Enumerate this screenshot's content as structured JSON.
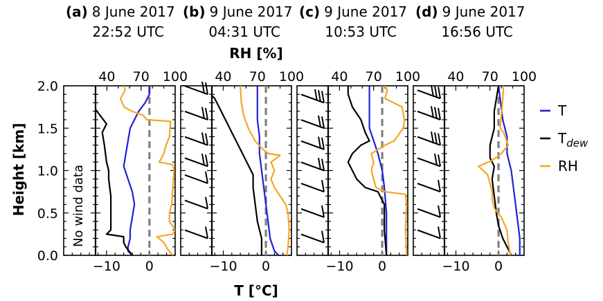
{
  "chart_data": {
    "type": "line",
    "shared": {
      "ylabel": "Height [km]",
      "xlabel_bottom": "T [°C]",
      "xlabel_top": "RH [%]",
      "ylim": [
        0.0,
        2.0
      ],
      "xlim_T": [
        -20,
        6
      ],
      "xlim_RH": [
        30,
        100
      ],
      "y_ticks": [
        "0.0",
        "0.5",
        "1.0",
        "1.5",
        "2.0"
      ],
      "T_ticks": [
        "−10",
        "0"
      ],
      "RH_ticks": [
        "40",
        "70",
        "100"
      ],
      "zero_line": "dashed gray at T = 0"
    },
    "legend": {
      "position": "right",
      "entries": [
        {
          "label": "T",
          "color": "#1f1fd6"
        },
        {
          "label": "T",
          "sub": "dew",
          "color": "#000000"
        },
        {
          "label": "RH",
          "color": "#f5a623"
        }
      ]
    },
    "panels": [
      {
        "tag": "(a)",
        "date": "8 June 2017",
        "time": "22:52 UTC",
        "wind_note": "No wind data",
        "barbs": [],
        "T": [
          [
            -4,
            0.0
          ],
          [
            -5,
            0.05
          ],
          [
            -5,
            0.1
          ],
          [
            -4.5,
            0.2
          ],
          [
            -4.5,
            0.3
          ],
          [
            -4,
            0.45
          ],
          [
            -3.5,
            0.6
          ],
          [
            -4,
            0.75
          ],
          [
            -5,
            0.9
          ],
          [
            -6,
            1.05
          ],
          [
            -5.5,
            1.2
          ],
          [
            -5,
            1.35
          ],
          [
            -4.5,
            1.5
          ],
          [
            -3.5,
            1.6
          ],
          [
            -2.5,
            1.7
          ],
          [
            -1,
            1.8
          ],
          [
            0,
            1.9
          ],
          [
            0,
            2.0
          ]
        ],
        "Tdew": [
          [
            -4,
            0.0
          ],
          [
            -5.5,
            0.1
          ],
          [
            -6,
            0.15
          ],
          [
            -6,
            0.22
          ],
          [
            -10,
            0.25
          ],
          [
            -9,
            0.3
          ],
          [
            -9,
            0.5
          ],
          [
            -9,
            0.7
          ],
          [
            -9.5,
            0.9
          ],
          [
            -9.5,
            1.0
          ],
          [
            -10,
            1.1
          ],
          [
            -10.5,
            1.3
          ],
          [
            -11,
            1.45
          ],
          [
            -10,
            1.55
          ],
          [
            -13,
            1.75
          ],
          [
            -15,
            1.9
          ],
          [
            -14,
            2.0
          ]
        ],
        "RH": [
          [
            98,
            0.0
          ],
          [
            96,
            0.03
          ],
          [
            93,
            0.08
          ],
          [
            90,
            0.15
          ],
          [
            84,
            0.22
          ],
          [
            98,
            0.25
          ],
          [
            100,
            0.3
          ],
          [
            95,
            0.4
          ],
          [
            95,
            0.5
          ],
          [
            97,
            0.6
          ],
          [
            98,
            0.8
          ],
          [
            99,
            1.0
          ],
          [
            98,
            1.07
          ],
          [
            86,
            1.1
          ],
          [
            90,
            1.2
          ],
          [
            92,
            1.3
          ],
          [
            95,
            1.4
          ],
          [
            96,
            1.58
          ],
          [
            75,
            1.6
          ],
          [
            72,
            1.65
          ],
          [
            62,
            1.7
          ],
          [
            55,
            1.75
          ],
          [
            52,
            1.85
          ],
          [
            56,
            1.95
          ],
          [
            55,
            2.0
          ]
        ]
      },
      {
        "tag": "(b)",
        "date": "9 June 2017",
        "time": "04:31 UTC",
        "wind_note": "",
        "barbs": [
          {
            "h": 0.2,
            "n": 1
          },
          {
            "h": 0.55,
            "n": 1
          },
          {
            "h": 0.85,
            "n": 1
          },
          {
            "h": 1.05,
            "n": 2
          },
          {
            "h": 1.3,
            "n": 2
          },
          {
            "h": 1.6,
            "n": 2
          },
          {
            "h": 1.9,
            "n": 2
          }
        ],
        "T": [
          [
            3,
            0.0
          ],
          [
            2,
            0.05
          ],
          [
            1,
            0.2
          ],
          [
            0.5,
            0.4
          ],
          [
            0,
            0.6
          ],
          [
            -0.5,
            0.8
          ],
          [
            -1,
            1.0
          ],
          [
            -1.5,
            1.2
          ],
          [
            -1.5,
            1.4
          ],
          [
            -2,
            1.6
          ],
          [
            -2,
            1.8
          ],
          [
            -2,
            2.0
          ]
        ],
        "Tdew": [
          [
            -1,
            0.0
          ],
          [
            -1,
            0.2
          ],
          [
            -2,
            0.4
          ],
          [
            -2.5,
            0.6
          ],
          [
            -3,
            0.8
          ],
          [
            -3,
            0.95
          ],
          [
            -4,
            1.05
          ],
          [
            -5,
            1.15
          ],
          [
            -6,
            1.25
          ],
          [
            -7,
            1.35
          ],
          [
            -8,
            1.45
          ],
          [
            -9,
            1.55
          ],
          [
            -10,
            1.65
          ],
          [
            -11,
            1.75
          ],
          [
            -12,
            1.85
          ],
          [
            -14,
            1.95
          ],
          [
            -14,
            2.0
          ]
        ],
        "RH": [
          [
            96,
            0.0
          ],
          [
            97,
            0.1
          ],
          [
            98,
            0.3
          ],
          [
            97,
            0.5
          ],
          [
            95,
            0.6
          ],
          [
            90,
            0.7
          ],
          [
            85,
            0.8
          ],
          [
            82,
            0.9
          ],
          [
            85,
            1.0
          ],
          [
            82,
            1.1
          ],
          [
            90,
            1.18
          ],
          [
            80,
            1.2
          ],
          [
            75,
            1.25
          ],
          [
            68,
            1.35
          ],
          [
            62,
            1.5
          ],
          [
            58,
            1.65
          ],
          [
            56,
            1.8
          ],
          [
            55,
            2.0
          ]
        ]
      },
      {
        "tag": "(c)",
        "date": "9 June 2017",
        "time": "10:53 UTC",
        "wind_note": "",
        "barbs": [
          {
            "h": 0.15,
            "n": 1
          },
          {
            "h": 0.45,
            "n": 1
          },
          {
            "h": 0.75,
            "n": 1
          },
          {
            "h": 1.0,
            "n": 2
          },
          {
            "h": 1.25,
            "n": 2
          },
          {
            "h": 1.5,
            "n": 2
          },
          {
            "h": 1.8,
            "n": 3
          }
        ],
        "T": [
          [
            1,
            0.0
          ],
          [
            1,
            0.2
          ],
          [
            1,
            0.5
          ],
          [
            0.5,
            0.8
          ],
          [
            0,
            1.0
          ],
          [
            -1,
            1.2
          ],
          [
            -2,
            1.35
          ],
          [
            -3,
            1.5
          ],
          [
            -3,
            1.7
          ],
          [
            -3,
            1.9
          ],
          [
            -3,
            2.0
          ]
        ],
        "Tdew": [
          [
            1,
            0.0
          ],
          [
            0.5,
            0.3
          ],
          [
            0.5,
            0.6
          ],
          [
            -1,
            0.75
          ],
          [
            -4,
            0.8
          ],
          [
            -6,
            0.9
          ],
          [
            -7,
            1.0
          ],
          [
            -8,
            1.1
          ],
          [
            -7,
            1.2
          ],
          [
            -5,
            1.3
          ],
          [
            -3,
            1.35
          ],
          [
            -4,
            1.45
          ],
          [
            -5,
            1.6
          ],
          [
            -7,
            1.75
          ],
          [
            -8,
            1.9
          ],
          [
            -8,
            2.0
          ]
        ],
        "RH": [
          [
            99,
            0.0
          ],
          [
            98,
            0.3
          ],
          [
            99,
            0.6
          ],
          [
            98,
            0.72
          ],
          [
            80,
            0.75
          ],
          [
            72,
            0.8
          ],
          [
            70,
            0.9
          ],
          [
            68,
            1.0
          ],
          [
            70,
            1.1
          ],
          [
            68,
            1.2
          ],
          [
            80,
            1.3
          ],
          [
            88,
            1.35
          ],
          [
            96,
            1.5
          ],
          [
            97,
            1.6
          ],
          [
            95,
            1.75
          ],
          [
            80,
            1.85
          ],
          [
            82,
            1.95
          ],
          [
            80,
            2.0
          ]
        ]
      },
      {
        "tag": "(d)",
        "date": "9 June 2017",
        "time": "16:56 UTC",
        "wind_note": "",
        "barbs": [
          {
            "h": 0.2,
            "n": 1
          },
          {
            "h": 0.45,
            "n": 1
          },
          {
            "h": 0.75,
            "n": 1
          },
          {
            "h": 1.05,
            "n": 2
          },
          {
            "h": 1.3,
            "n": 3
          },
          {
            "h": 1.6,
            "n": 3
          },
          {
            "h": 1.85,
            "n": 3
          }
        ],
        "T": [
          [
            5,
            0.0
          ],
          [
            5,
            0.2
          ],
          [
            4.5,
            0.4
          ],
          [
            4,
            0.6
          ],
          [
            3.5,
            0.8
          ],
          [
            3,
            1.0
          ],
          [
            2,
            1.2
          ],
          [
            2,
            1.4
          ],
          [
            1,
            1.6
          ],
          [
            0.5,
            1.8
          ],
          [
            0,
            2.0
          ]
        ],
        "Tdew": [
          [
            3,
            0.0
          ],
          [
            2,
            0.1
          ],
          [
            1,
            0.2
          ],
          [
            0,
            0.35
          ],
          [
            -0.5,
            0.5
          ],
          [
            -1,
            0.7
          ],
          [
            -1.5,
            0.9
          ],
          [
            -1,
            1.05
          ],
          [
            -2,
            1.15
          ],
          [
            -2,
            1.3
          ],
          [
            -1,
            1.5
          ],
          [
            -1,
            1.7
          ],
          [
            -0.5,
            1.85
          ],
          [
            0,
            2.0
          ]
        ],
        "RH": [
          [
            88,
            0.0
          ],
          [
            86,
            0.15
          ],
          [
            85,
            0.3
          ],
          [
            80,
            0.45
          ],
          [
            74,
            0.55
          ],
          [
            72,
            0.65
          ],
          [
            72,
            0.75
          ],
          [
            70,
            0.85
          ],
          [
            68,
            0.95
          ],
          [
            60,
            1.05
          ],
          [
            72,
            1.12
          ],
          [
            80,
            1.2
          ],
          [
            86,
            1.3
          ],
          [
            82,
            1.45
          ],
          [
            79,
            1.5
          ],
          [
            80,
            1.65
          ],
          [
            81,
            1.8
          ],
          [
            82,
            2.0
          ]
        ]
      }
    ]
  }
}
